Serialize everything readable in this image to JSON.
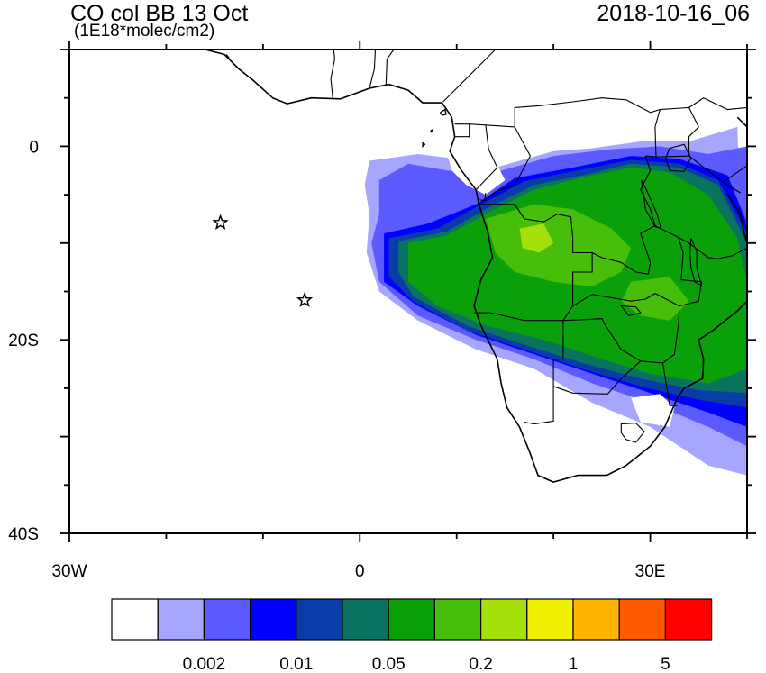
{
  "title": {
    "left": "CO col BB 13 Oct",
    "units": "(1E18*molec/cm2)",
    "right": "2018-10-16_06"
  },
  "axes": {
    "lon_range": [
      -30,
      40
    ],
    "lat_range": [
      -40,
      10
    ],
    "x_ticks": [
      {
        "value": -30,
        "label": "30W"
      },
      {
        "value": 0,
        "label": "0"
      },
      {
        "value": 30,
        "label": "30E"
      }
    ],
    "y_ticks": [
      {
        "value": 0,
        "label": "0"
      },
      {
        "value": -20,
        "label": "20S"
      },
      {
        "value": -40,
        "label": "40S"
      }
    ]
  },
  "colorbar": {
    "colors": [
      "#ffffff",
      "#a6a6ff",
      "#5a5aff",
      "#0000ff",
      "#0a3ca8",
      "#0a7360",
      "#0aa00a",
      "#46be0a",
      "#a6e00a",
      "#f0f000",
      "#ffb400",
      "#ff5a00",
      "#ff0000"
    ],
    "labels": [
      {
        "boundary": 2,
        "text": "0.002"
      },
      {
        "boundary": 4,
        "text": "0.01"
      },
      {
        "boundary": 6,
        "text": "0.05"
      },
      {
        "boundary": 8,
        "text": "0.2"
      },
      {
        "boundary": 10,
        "text": "1"
      },
      {
        "boundary": 12,
        "text": "5"
      }
    ]
  },
  "markers": [
    {
      "name": "star",
      "lon": -14.4,
      "lat": -7.9
    },
    {
      "name": "star",
      "lon": -5.7,
      "lat": -15.9
    }
  ],
  "plume": [
    {
      "level": 1,
      "pts": [
        [
          1,
          -1.5
        ],
        [
          6,
          -0.8
        ],
        [
          10,
          -1.3
        ],
        [
          14,
          -2.2
        ],
        [
          20,
          -0.5
        ],
        [
          24,
          -0.2
        ],
        [
          29,
          0.5
        ],
        [
          34,
          0.5
        ],
        [
          39,
          2
        ],
        [
          40,
          -34
        ],
        [
          36,
          -33
        ],
        [
          30,
          -29
        ],
        [
          24,
          -26.5
        ],
        [
          18,
          -23
        ],
        [
          12,
          -21
        ],
        [
          6,
          -18
        ],
        [
          2,
          -15
        ],
        [
          0.7,
          -11
        ],
        [
          1,
          -7
        ],
        [
          0.5,
          -4
        ]
      ]
    },
    {
      "level": 2,
      "pts": [
        [
          2,
          -3.5
        ],
        [
          5,
          -1.8
        ],
        [
          9,
          -2.5
        ],
        [
          14,
          -2.7
        ],
        [
          20,
          -1
        ],
        [
          26,
          -0.3
        ],
        [
          31,
          0
        ],
        [
          36,
          -0.8
        ],
        [
          40,
          0
        ],
        [
          40,
          -31
        ],
        [
          36,
          -29
        ],
        [
          30,
          -26.5
        ],
        [
          24,
          -24.5
        ],
        [
          18,
          -22
        ],
        [
          12,
          -20
        ],
        [
          6,
          -17.5
        ],
        [
          2,
          -14
        ],
        [
          1.2,
          -10
        ],
        [
          2,
          -7
        ]
      ]
    },
    {
      "level": 3,
      "pts": [
        [
          2.5,
          -9
        ],
        [
          7,
          -8
        ],
        [
          12,
          -6
        ],
        [
          16,
          -3.3
        ],
        [
          22,
          -2.2
        ],
        [
          28,
          -1
        ],
        [
          33,
          -1.3
        ],
        [
          38,
          -3
        ],
        [
          40,
          -8
        ],
        [
          40,
          -29
        ],
        [
          36,
          -27.5
        ],
        [
          30,
          -25.5
        ],
        [
          24,
          -23.5
        ],
        [
          18,
          -21.5
        ],
        [
          12,
          -19.5
        ],
        [
          6,
          -16.5
        ],
        [
          2.5,
          -14
        ]
      ]
    },
    {
      "level": 4,
      "pts": [
        [
          3,
          -9.5
        ],
        [
          8,
          -8.5
        ],
        [
          12,
          -6.3
        ],
        [
          17,
          -3.6
        ],
        [
          22,
          -2.6
        ],
        [
          28,
          -1.4
        ],
        [
          33,
          -1.8
        ],
        [
          37,
          -3.5
        ],
        [
          40,
          -9
        ],
        [
          40,
          -27
        ],
        [
          35,
          -26.2
        ],
        [
          29,
          -24.8
        ],
        [
          23,
          -23
        ],
        [
          17,
          -21
        ],
        [
          11,
          -19
        ],
        [
          5.5,
          -16
        ],
        [
          3,
          -13.5
        ]
      ]
    },
    {
      "level": 5,
      "pts": [
        [
          4,
          -9.8
        ],
        [
          9,
          -8.8
        ],
        [
          13,
          -6.5
        ],
        [
          18,
          -4
        ],
        [
          23,
          -3
        ],
        [
          28,
          -1.8
        ],
        [
          33,
          -2.2
        ],
        [
          37,
          -4
        ],
        [
          40,
          -10
        ],
        [
          40,
          -25.5
        ],
        [
          35,
          -25.2
        ],
        [
          29,
          -24
        ],
        [
          23,
          -22.4
        ],
        [
          17,
          -20.5
        ],
        [
          11,
          -18.5
        ],
        [
          5.5,
          -15.5
        ],
        [
          4,
          -13
        ]
      ]
    },
    {
      "level": 6,
      "pts": [
        [
          5,
          -10
        ],
        [
          9,
          -9.2
        ],
        [
          13,
          -7
        ],
        [
          18,
          -4.5
        ],
        [
          23,
          -3.2
        ],
        [
          28,
          -2.2
        ],
        [
          32,
          -2.7
        ],
        [
          36,
          -5
        ],
        [
          39,
          -9.5
        ],
        [
          40,
          -14
        ],
        [
          40,
          -23
        ],
        [
          36,
          -24.5
        ],
        [
          30,
          -23.5
        ],
        [
          25,
          -22
        ],
        [
          19,
          -20
        ],
        [
          13,
          -18.5
        ],
        [
          8,
          -16.5
        ],
        [
          5,
          -14
        ]
      ]
    },
    {
      "level": 7,
      "pts": [
        [
          13,
          -7.5
        ],
        [
          18,
          -6
        ],
        [
          22,
          -6.5
        ],
        [
          26,
          -8.5
        ],
        [
          28,
          -10.5
        ],
        [
          27,
          -13
        ],
        [
          24,
          -14.5
        ],
        [
          20,
          -14
        ],
        [
          16,
          -13
        ],
        [
          14,
          -11
        ]
      ]
    },
    {
      "level": 7,
      "pts": [
        [
          28,
          -14
        ],
        [
          32,
          -13.5
        ],
        [
          34,
          -16
        ],
        [
          32,
          -18
        ],
        [
          29,
          -17.5
        ],
        [
          27,
          -16
        ]
      ]
    },
    {
      "level": 8,
      "pts": [
        [
          16.5,
          -8.5
        ],
        [
          19,
          -8
        ],
        [
          20,
          -10
        ],
        [
          18.5,
          -11
        ],
        [
          16.8,
          -10.5
        ]
      ]
    }
  ],
  "nodata": [
    [
      [
        8.5,
        2
      ],
      [
        12,
        0
      ],
      [
        14,
        -1.5
      ],
      [
        15,
        -3.5
      ],
      [
        13,
        -5
      ],
      [
        11,
        -4
      ],
      [
        9.5,
        -2.5
      ],
      [
        8.8,
        0
      ]
    ],
    [
      [
        28,
        -26
      ],
      [
        31,
        -25.6
      ],
      [
        32.5,
        -27
      ],
      [
        32,
        -29
      ],
      [
        29,
        -28.5
      ]
    ]
  ],
  "coast": [
    [
      [
        -16,
        10
      ],
      [
        -14,
        9.5
      ],
      [
        -12.5,
        8
      ],
      [
        -11,
        6.8
      ],
      [
        -9,
        5
      ],
      [
        -7.5,
        4.4
      ],
      [
        -5,
        5
      ],
      [
        -2,
        4.9
      ],
      [
        1,
        6
      ],
      [
        3,
        6.4
      ],
      [
        5,
        5.8
      ],
      [
        6.5,
        4.5
      ],
      [
        8.5,
        4.5
      ],
      [
        9.5,
        3
      ],
      [
        9.8,
        1
      ],
      [
        9.3,
        -0.5
      ],
      [
        10.5,
        -2.5
      ],
      [
        12,
        -4.5
      ],
      [
        12.3,
        -6
      ],
      [
        13.2,
        -8.8
      ],
      [
        13.7,
        -11.5
      ],
      [
        12.5,
        -13.8
      ],
      [
        11.8,
        -16.5
      ],
      [
        12.5,
        -18.5
      ],
      [
        14.2,
        -22
      ],
      [
        14.6,
        -24.5
      ],
      [
        15.2,
        -27
      ],
      [
        16.5,
        -29
      ],
      [
        17.5,
        -31.5
      ],
      [
        18.4,
        -34
      ],
      [
        20,
        -34.7
      ],
      [
        22.5,
        -34
      ],
      [
        25.5,
        -34
      ],
      [
        27.5,
        -33
      ],
      [
        30,
        -31
      ],
      [
        31.5,
        -29
      ],
      [
        32.8,
        -26
      ],
      [
        33.5,
        -25
      ],
      [
        35.4,
        -24
      ],
      [
        35.5,
        -22
      ],
      [
        35,
        -20
      ],
      [
        36.5,
        -19
      ],
      [
        39,
        -17
      ],
      [
        40,
        -16
      ]
    ],
    [
      [
        38,
        -5
      ],
      [
        39.3,
        -7
      ],
      [
        39.7,
        -9
      ],
      [
        40,
        -10
      ]
    ],
    [
      [
        39,
        3
      ],
      [
        40,
        2
      ]
    ]
  ],
  "borders": [
    [
      [
        -2.8,
        5
      ],
      [
        -3,
        7
      ],
      [
        -2.6,
        9
      ],
      [
        -2.7,
        10
      ]
    ],
    [
      [
        1,
        6
      ],
      [
        1.5,
        8
      ],
      [
        1.6,
        10
      ]
    ],
    [
      [
        2.7,
        6.3
      ],
      [
        2.8,
        9
      ],
      [
        3.5,
        10
      ]
    ],
    [
      [
        8.6,
        4.6
      ],
      [
        10,
        6
      ],
      [
        12,
        8
      ],
      [
        14,
        10
      ]
    ],
    [
      [
        9.8,
        2.3
      ],
      [
        11.3,
        2.3
      ],
      [
        13,
        2.2
      ],
      [
        16,
        2
      ],
      [
        16,
        4
      ],
      [
        18.6,
        4.2
      ],
      [
        22,
        4.6
      ],
      [
        25,
        5
      ],
      [
        27.5,
        4.8
      ],
      [
        30,
        3.5
      ],
      [
        31,
        3.8
      ],
      [
        34,
        4
      ],
      [
        35.5,
        5
      ],
      [
        38,
        3.8
      ],
      [
        40,
        4
      ]
    ],
    [
      [
        11.3,
        2.3
      ],
      [
        11.3,
        1
      ],
      [
        9.8,
        1
      ]
    ],
    [
      [
        13,
        2.2
      ],
      [
        13.3,
        -0.3
      ],
      [
        14.2,
        -2.2
      ],
      [
        12,
        -4.5
      ]
    ],
    [
      [
        12.2,
        -5.5
      ],
      [
        12.9,
        -5.6
      ],
      [
        13,
        -4.8
      ]
    ],
    [
      [
        16,
        2
      ],
      [
        17.6,
        -1
      ],
      [
        16,
        -4
      ],
      [
        14,
        -4.7
      ],
      [
        12.9,
        -5.6
      ]
    ],
    [
      [
        12.2,
        -6
      ],
      [
        16,
        -6
      ],
      [
        17,
        -7.5
      ],
      [
        19,
        -7.8
      ],
      [
        20.4,
        -7
      ],
      [
        21.8,
        -7.3
      ],
      [
        22,
        -9.5
      ],
      [
        22,
        -11
      ],
      [
        24,
        -11
      ],
      [
        24,
        -13
      ],
      [
        22,
        -13
      ],
      [
        22,
        -16.5
      ]
    ],
    [
      [
        22,
        -16.5
      ],
      [
        21,
        -18
      ],
      [
        17,
        -18
      ],
      [
        13.5,
        -17.2
      ],
      [
        11.8,
        -17.2
      ]
    ],
    [
      [
        21,
        -18
      ],
      [
        21,
        -22
      ],
      [
        20,
        -22
      ],
      [
        20,
        -24.8
      ],
      [
        20,
        -28.4
      ],
      [
        18,
        -28.7
      ],
      [
        17,
        -28.5
      ]
    ],
    [
      [
        21,
        -18
      ],
      [
        23.5,
        -17.9
      ],
      [
        25,
        -17.8
      ],
      [
        25.3,
        -18.4
      ]
    ],
    [
      [
        22,
        -16.5
      ],
      [
        24,
        -15.3
      ],
      [
        28,
        -16
      ],
      [
        29.5,
        -15.8
      ],
      [
        30.5,
        -15.2
      ]
    ],
    [
      [
        25.3,
        -18.4
      ],
      [
        27,
        -21
      ],
      [
        29,
        -22.2
      ],
      [
        31.3,
        -22.4
      ],
      [
        32.5,
        -21.5
      ],
      [
        32.9,
        -18.5
      ],
      [
        33,
        -17
      ]
    ],
    [
      [
        20,
        -24.8
      ],
      [
        22,
        -25.5
      ],
      [
        25.6,
        -25.6
      ],
      [
        27,
        -24
      ],
      [
        29,
        -22.2
      ]
    ],
    [
      [
        31.3,
        -22.4
      ],
      [
        31.8,
        -25.5
      ],
      [
        32,
        -26.8
      ],
      [
        32.8,
        -26.8
      ]
    ],
    [
      [
        30.5,
        -15.2
      ],
      [
        33,
        -16.5
      ],
      [
        35,
        -16
      ],
      [
        35.3,
        -14
      ],
      [
        33.2,
        -13.8
      ],
      [
        33.4,
        -11
      ],
      [
        32.9,
        -9.4
      ]
    ],
    [
      [
        24,
        -11
      ],
      [
        25,
        -11.5
      ],
      [
        27,
        -12
      ],
      [
        28.5,
        -13
      ],
      [
        29.8,
        -13.2
      ],
      [
        30,
        -12
      ],
      [
        29,
        -9
      ],
      [
        30.5,
        -8.2
      ],
      [
        32.9,
        -9.4
      ]
    ],
    [
      [
        32.9,
        -9.4
      ],
      [
        34,
        -10
      ],
      [
        36,
        -11.5
      ],
      [
        37,
        -11.6
      ],
      [
        38.5,
        -11.3
      ],
      [
        40,
        -10.5
      ]
    ],
    [
      [
        29.5,
        -1
      ],
      [
        30,
        -2.5
      ],
      [
        29,
        -4.5
      ],
      [
        30,
        -6.5
      ],
      [
        30.5,
        -8.2
      ]
    ],
    [
      [
        29.5,
        -1
      ],
      [
        30.6,
        -1.1
      ],
      [
        34,
        -1
      ],
      [
        37.5,
        -3.7
      ],
      [
        39.3,
        -4.8
      ]
    ],
    [
      [
        30.6,
        -1.1
      ],
      [
        30.5,
        2
      ],
      [
        31,
        3.8
      ]
    ],
    [
      [
        35.5,
        5
      ],
      [
        34,
        4
      ],
      [
        35,
        2
      ],
      [
        34,
        1
      ],
      [
        34,
        -1
      ]
    ],
    [
      [
        37.5,
        -3.7
      ],
      [
        40,
        -2
      ]
    ]
  ],
  "lakes": [
    [
      [
        32,
        -0.2
      ],
      [
        33.5,
        0.2
      ],
      [
        34.2,
        -1.2
      ],
      [
        33.5,
        -2.6
      ],
      [
        32,
        -2.5
      ],
      [
        31.6,
        -1.2
      ]
    ],
    [
      [
        29.1,
        -3.5
      ],
      [
        29.6,
        -4.5
      ],
      [
        30.7,
        -7
      ],
      [
        31.1,
        -8.5
      ],
      [
        30.5,
        -8.3
      ],
      [
        29.5,
        -6.5
      ],
      [
        29.3,
        -5
      ]
    ],
    [
      [
        34.2,
        -9.5
      ],
      [
        34.8,
        -10.8
      ],
      [
        34.8,
        -12.5
      ],
      [
        35.3,
        -14.4
      ],
      [
        34.6,
        -14
      ],
      [
        34.2,
        -12.5
      ],
      [
        34.1,
        -11
      ]
    ],
    [
      [
        27,
        -16.5
      ],
      [
        28.5,
        -16.6
      ],
      [
        29,
        -17.2
      ],
      [
        27.8,
        -17.5
      ]
    ]
  ],
  "lesotho": [
    [
      27,
      -28.7
    ],
    [
      28.5,
      -28.6
    ],
    [
      29.4,
      -29.5
    ],
    [
      28.5,
      -30.6
    ],
    [
      27.5,
      -30.3
    ],
    [
      27,
      -29.6
    ]
  ],
  "islands": [
    [
      [
        -13.8,
        9.5
      ],
      [
        -13.5,
        9.1
      ]
    ],
    [
      [
        8.3,
        3.5
      ],
      [
        8.8,
        3.8
      ],
      [
        8.9,
        3.3
      ],
      [
        8.5,
        3.2
      ],
      [
        8.3,
        3.5
      ]
    ],
    [
      [
        6.5,
        0.4
      ],
      [
        6.7,
        0.2
      ],
      [
        6.5,
        0.0
      ],
      [
        6.5,
        0.4
      ]
    ],
    [
      [
        7.3,
        1.6
      ],
      [
        7.5,
        1.7
      ],
      [
        7.4,
        1.5
      ],
      [
        7.3,
        1.6
      ]
    ]
  ]
}
